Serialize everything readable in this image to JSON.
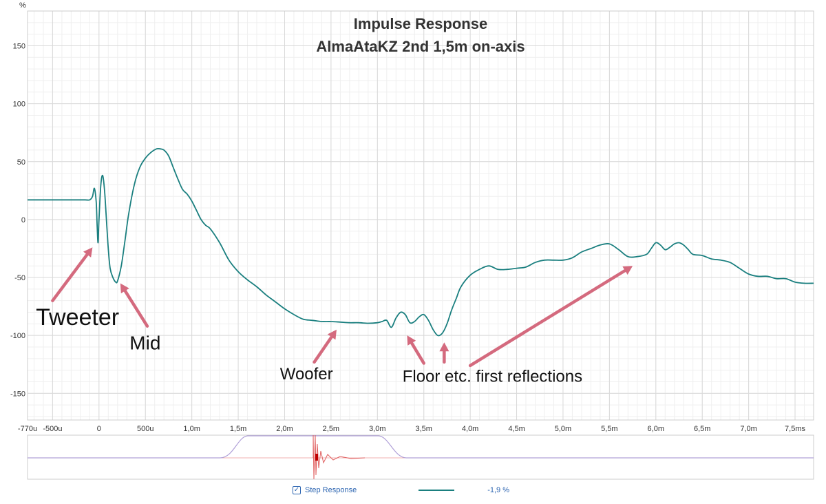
{
  "colors": {
    "trace": "#1a7f7f",
    "grid": "#d9d9d9",
    "arrow": "#d46a7e",
    "overview_step": "#b0a0d8",
    "overview_ir": "#e06060"
  },
  "chart_data": {
    "type": "line",
    "title": "Impulse Response",
    "subtitle": "AlmaAtaKZ 2nd 1,5m on-axis",
    "ylabel": "%",
    "xlabel": "",
    "xlim": [
      -0.77,
      7.7
    ],
    "ylim": [
      -173,
      180
    ],
    "grid": true,
    "x_ticks": [
      {
        "v": -0.77,
        "label": "-770u"
      },
      {
        "v": -0.5,
        "label": "-500u"
      },
      {
        "v": 0,
        "label": "0"
      },
      {
        "v": 0.5,
        "label": "500u"
      },
      {
        "v": 1.0,
        "label": "1,0m"
      },
      {
        "v": 1.5,
        "label": "1,5m"
      },
      {
        "v": 2.0,
        "label": "2,0m"
      },
      {
        "v": 2.5,
        "label": "2,5m"
      },
      {
        "v": 3.0,
        "label": "3,0m"
      },
      {
        "v": 3.5,
        "label": "3,5m"
      },
      {
        "v": 4.0,
        "label": "4,0m"
      },
      {
        "v": 4.5,
        "label": "4,5m"
      },
      {
        "v": 5.0,
        "label": "5,0m"
      },
      {
        "v": 5.5,
        "label": "5,5m"
      },
      {
        "v": 6.0,
        "label": "6,0m"
      },
      {
        "v": 6.5,
        "label": "6,5m"
      },
      {
        "v": 7.0,
        "label": "7,0m"
      },
      {
        "v": 7.5,
        "label": "7,5ms"
      }
    ],
    "y_ticks": [
      {
        "v": 150,
        "label": "150"
      },
      {
        "v": 100,
        "label": "100"
      },
      {
        "v": 50,
        "label": "50"
      },
      {
        "v": 0,
        "label": "0"
      },
      {
        "v": -50,
        "label": "-50"
      },
      {
        "v": -100,
        "label": "-100"
      },
      {
        "v": -150,
        "label": "-150"
      }
    ],
    "series": [
      {
        "name": "Step Response",
        "x": [
          -0.77,
          -0.5,
          -0.3,
          -0.15,
          -0.1,
          -0.07,
          -0.05,
          -0.03,
          -0.02,
          -0.01,
          0.0,
          0.02,
          0.04,
          0.06,
          0.08,
          0.1,
          0.12,
          0.15,
          0.18,
          0.2,
          0.24,
          0.28,
          0.32,
          0.38,
          0.44,
          0.5,
          0.56,
          0.62,
          0.66,
          0.7,
          0.75,
          0.8,
          0.85,
          0.9,
          0.95,
          1.0,
          1.05,
          1.1,
          1.15,
          1.2,
          1.3,
          1.4,
          1.5,
          1.6,
          1.7,
          1.8,
          1.9,
          2.0,
          2.1,
          2.2,
          2.3,
          2.4,
          2.5,
          2.6,
          2.7,
          2.8,
          2.9,
          3.0,
          3.05,
          3.1,
          3.15,
          3.2,
          3.25,
          3.3,
          3.35,
          3.4,
          3.45,
          3.5,
          3.55,
          3.6,
          3.65,
          3.7,
          3.75,
          3.8,
          3.85,
          3.9,
          4.0,
          4.1,
          4.2,
          4.3,
          4.4,
          4.5,
          4.6,
          4.7,
          4.8,
          4.9,
          5.0,
          5.1,
          5.2,
          5.3,
          5.4,
          5.5,
          5.6,
          5.7,
          5.8,
          5.9,
          5.95,
          6.0,
          6.05,
          6.1,
          6.15,
          6.2,
          6.25,
          6.3,
          6.35,
          6.4,
          6.5,
          6.6,
          6.7,
          6.8,
          6.9,
          7.0,
          7.1,
          7.2,
          7.3,
          7.4,
          7.5,
          7.6,
          7.7
        ],
        "y": [
          17,
          17,
          17,
          17,
          17,
          20,
          27,
          15,
          -5,
          -20,
          0,
          30,
          38,
          25,
          0,
          -25,
          -42,
          -50,
          -54,
          -53,
          -40,
          -18,
          5,
          30,
          45,
          53,
          58,
          61,
          61,
          60,
          55,
          45,
          35,
          26,
          22,
          16,
          8,
          0,
          -5,
          -8,
          -20,
          -35,
          -45,
          -52,
          -58,
          -65,
          -71,
          -77,
          -82,
          -86,
          -87,
          -88,
          -88,
          -88.5,
          -89,
          -89,
          -89.5,
          -89,
          -88,
          -87,
          -93,
          -85,
          -80,
          -82,
          -89,
          -88,
          -84,
          -82,
          -87,
          -95,
          -100,
          -98,
          -90,
          -78,
          -68,
          -58,
          -48,
          -43,
          -40,
          -43,
          -43,
          -42,
          -41,
          -37,
          -35,
          -35,
          -35,
          -33,
          -28,
          -25,
          -22,
          -21,
          -26,
          -32,
          -32,
          -30,
          -25,
          -20,
          -22,
          -26,
          -24,
          -21,
          -20,
          -22,
          -26,
          -30,
          -31,
          -34,
          -35,
          -37,
          -42,
          -47,
          -49,
          -49,
          -51,
          -51,
          -54,
          -55,
          -55
        ]
      }
    ],
    "annotations": [
      {
        "label": "Tweeter",
        "x": -0.68,
        "y": -91,
        "size": 34
      },
      {
        "label": "Mid",
        "x": 0.33,
        "y": -112,
        "size": 28
      },
      {
        "label": "Woofer",
        "x": 1.95,
        "y": -138,
        "size": 24
      },
      {
        "label": "Floor etc. first reflections",
        "x": 3.27,
        "y": -140,
        "size": 24
      }
    ],
    "arrows": [
      {
        "from": [
          -0.5,
          -70
        ],
        "to": [
          -0.07,
          -24
        ]
      },
      {
        "from": [
          0.52,
          -92
        ],
        "to": [
          0.23,
          -55
        ]
      },
      {
        "from": [
          2.32,
          -123
        ],
        "to": [
          2.56,
          -95
        ]
      },
      {
        "from": [
          3.5,
          -124
        ],
        "to": [
          3.32,
          -100
        ]
      },
      {
        "from": [
          3.72,
          -123
        ],
        "to": [
          3.72,
          -106
        ]
      },
      {
        "from": [
          4.0,
          -126
        ],
        "to": [
          5.75,
          -40
        ]
      }
    ]
  },
  "legend": {
    "checkbox_label": "Step Response",
    "value": "-1,9 %",
    "checked": true
  }
}
